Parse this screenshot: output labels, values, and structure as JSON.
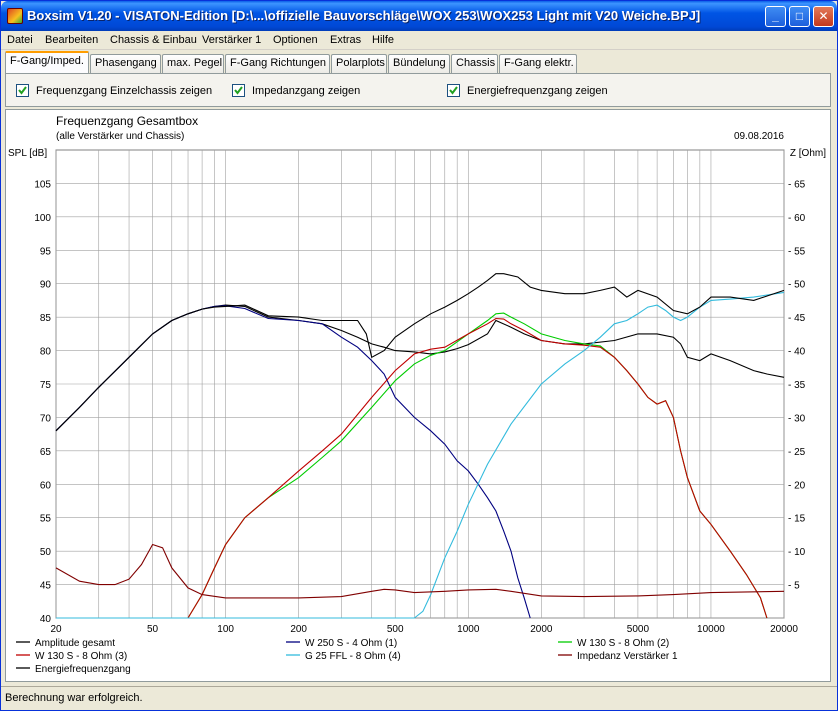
{
  "window": {
    "title": "Boxsim V1.20 - VISATON-Edition [D:\\...\\offizielle Bauvorschläge\\WOX 253\\WOX253 Light mit V20 Weiche.BPJ]",
    "minimize_label": "_",
    "maximize_label": "□",
    "close_label": "✕"
  },
  "menu": [
    "Datei",
    "Bearbeiten",
    "Chassis & Einbau",
    "Verstärker 1",
    "Optionen",
    "Extras",
    "Hilfe"
  ],
  "tabs": [
    "F-Gang/Imped.",
    "Phasengang",
    "max. Pegel",
    "F-Gang Richtungen",
    "Polarplots",
    "Bündelung",
    "Chassis",
    "F-Gang elektr."
  ],
  "active_tab": 0,
  "options": [
    {
      "label": "Frequenzgang Einzelchassis zeigen",
      "checked": true
    },
    {
      "label": "Impedanzgang zeigen",
      "checked": true
    },
    {
      "label": "Energiefrequenzgang zeigen",
      "checked": true
    }
  ],
  "status": "Berechnung war erfolgreich.",
  "colors": {
    "total": "#000000",
    "w250": "#000080",
    "w130_2": "#00cc00",
    "w130_3": "#c00000",
    "g25": "#33bbdd",
    "imp_amp": "#800000",
    "energy": "#000000",
    "grid": "#a0a0a0"
  },
  "chart_data": {
    "type": "line",
    "title": "Frequenzgang Gesamtbox",
    "subtitle": "(alle Verstärker und Chassis)",
    "date": "09.08.2016",
    "ylabel_left": "SPL [dB]",
    "ylabel_right": "Z [Ohm]",
    "x_scale": "log",
    "xlim": [
      20,
      20000
    ],
    "ylim": [
      40,
      110
    ],
    "ylim_right": [
      0,
      70
    ],
    "x_ticks": [
      20,
      50,
      100,
      200,
      500,
      1000,
      2000,
      5000,
      10000,
      20000
    ],
    "x_tick_labels": [
      "20",
      "50",
      "100",
      "200",
      "500",
      "1000",
      "2000",
      "5000",
      "10000",
      "20000"
    ],
    "y_ticks": [
      40,
      45,
      50,
      55,
      60,
      65,
      70,
      75,
      80,
      85,
      90,
      95,
      100,
      105
    ],
    "y_tick_labels": [
      "40",
      "45",
      "50",
      "55",
      "60",
      "65",
      "70",
      "75",
      "80",
      "85",
      "90",
      "95",
      "100",
      "105"
    ],
    "y_right_ticks": [
      5,
      10,
      15,
      20,
      25,
      30,
      35,
      40,
      45,
      50,
      55,
      60,
      65
    ],
    "y_right_tick_labels": [
      "5",
      "10",
      "15",
      "20",
      "25",
      "30",
      "35",
      "40",
      "45",
      "50",
      "55",
      "60",
      "65"
    ],
    "grid": true,
    "legend_position": "bottom",
    "series": [
      {
        "name": "Amplitude gesamt",
        "color_key": "total",
        "axis": "left",
        "x": [
          20,
          25,
          30,
          40,
          50,
          60,
          70,
          80,
          90,
          100,
          120,
          150,
          200,
          250,
          300,
          350,
          400,
          450,
          500,
          600,
          700,
          800,
          900,
          1000,
          1200,
          1300,
          1500,
          1700,
          2000,
          2500,
          3000,
          4000,
          5000,
          6000,
          7000,
          7500,
          8000,
          9000,
          10000,
          12000,
          15000,
          17000,
          20000
        ],
        "y": [
          68,
          71.5,
          74.5,
          79,
          82.5,
          84.5,
          85.5,
          86.2,
          86.6,
          86.8,
          86.6,
          85,
          84.5,
          84,
          83,
          82,
          81,
          80.5,
          80,
          79.8,
          79.5,
          79.8,
          80.3,
          80.9,
          82.5,
          84.5,
          83.5,
          82.5,
          81.5,
          81,
          81,
          81.5,
          82.5,
          82.5,
          82,
          81,
          79,
          78.5,
          79.5,
          78.5,
          77,
          76.5,
          76
        ]
      },
      {
        "name": "W 250 S - 4 Ohm (1)",
        "color_key": "w250",
        "axis": "left",
        "x": [
          20,
          25,
          30,
          40,
          50,
          60,
          70,
          80,
          90,
          100,
          120,
          150,
          200,
          250,
          300,
          350,
          400,
          450,
          500,
          600,
          700,
          800,
          900,
          1000,
          1100,
          1200,
          1300,
          1400,
          1500,
          1600,
          1700,
          1800
        ],
        "y": [
          68,
          71.5,
          74.5,
          79,
          82.5,
          84.5,
          85.5,
          86.2,
          86.6,
          86.7,
          86.3,
          84.8,
          84.5,
          84,
          82,
          80.5,
          78.5,
          76.5,
          73,
          70,
          68,
          66,
          63.5,
          62,
          60,
          58,
          56,
          53,
          50,
          46,
          43,
          40
        ]
      },
      {
        "name": "W 130 S - 8 Ohm (2)",
        "color_key": "w130_2",
        "axis": "left",
        "x": [
          20,
          50,
          70,
          80,
          90,
          100,
          120,
          150,
          200,
          250,
          300,
          400,
          500,
          600,
          700,
          800,
          1000,
          1200,
          1300,
          1400,
          1500,
          1700,
          2000,
          2500,
          3000,
          3500,
          4000,
          4500,
          5000,
          5500,
          6000,
          6500,
          7000,
          7500,
          8000,
          9000,
          10000,
          12000,
          14000,
          16000,
          17000
        ],
        "y": [
          40,
          40,
          40,
          43.5,
          47.5,
          51,
          55,
          58,
          61,
          64,
          66.5,
          71.5,
          75.5,
          78,
          79.3,
          80,
          82.5,
          84.5,
          85.5,
          85.6,
          85,
          84,
          82.5,
          81.5,
          81,
          80.7,
          79,
          77,
          75,
          73,
          72,
          72.5,
          70,
          65,
          61,
          56,
          54,
          50,
          46.5,
          43,
          40
        ]
      },
      {
        "name": "W 130 S - 8 Ohm (3)",
        "color_key": "w130_3",
        "axis": "left",
        "x": [
          20,
          50,
          70,
          80,
          90,
          100,
          120,
          150,
          200,
          250,
          300,
          400,
          500,
          600,
          700,
          800,
          1000,
          1200,
          1300,
          1400,
          1500,
          1700,
          2000,
          2500,
          3000,
          3500,
          4000,
          4500,
          5000,
          5500,
          6000,
          6500,
          7000,
          7500,
          8000,
          9000,
          10000,
          12000,
          14000,
          16000,
          17000
        ],
        "y": [
          40,
          40,
          40,
          43.5,
          47.5,
          51,
          55,
          58,
          62,
          65,
          67.5,
          73,
          77,
          79.5,
          80.2,
          80.5,
          82.5,
          84,
          84.8,
          84.7,
          84,
          83,
          81.5,
          81,
          80.8,
          80.5,
          79,
          77,
          75,
          73,
          72,
          72.5,
          70,
          65,
          61,
          56,
          54,
          50,
          46.5,
          43,
          40
        ]
      },
      {
        "name": "G 25 FFL - 8 Ohm (4)",
        "color_key": "g25",
        "axis": "left",
        "x": [
          20,
          600,
          650,
          700,
          800,
          900,
          1000,
          1200,
          1500,
          2000,
          2500,
          3000,
          3500,
          4000,
          4500,
          5000,
          5500,
          6000,
          6500,
          7000,
          7500,
          8000,
          9000,
          10000,
          12000,
          15000,
          20000
        ],
        "y": [
          40,
          40,
          41,
          43.5,
          49,
          53,
          57,
          63,
          69,
          75,
          78,
          80,
          82,
          84,
          84.5,
          85.5,
          86.5,
          86.8,
          86,
          85,
          84.5,
          85,
          86.5,
          87.5,
          87.7,
          88,
          88.7
        ]
      },
      {
        "name": "Impedanz Verstärker 1",
        "color_key": "imp_amp",
        "axis": "right",
        "x": [
          20,
          25,
          30,
          35,
          40,
          45,
          50,
          55,
          60,
          70,
          80,
          100,
          150,
          200,
          300,
          400,
          450,
          500,
          600,
          800,
          1000,
          1300,
          1500,
          2000,
          3000,
          5000,
          7000,
          10000,
          20000
        ],
        "y": [
          7.5,
          5.5,
          5,
          5,
          5.8,
          8,
          11,
          10.5,
          7.5,
          4.5,
          3.5,
          3,
          3,
          3,
          3.2,
          4,
          4.3,
          4.2,
          3.8,
          4,
          4.2,
          4.3,
          4,
          3.3,
          3.2,
          3.3,
          3.5,
          3.8,
          4
        ]
      },
      {
        "name": "Energiefrequenzgang",
        "color_key": "energy",
        "axis": "left",
        "x": [
          20,
          25,
          30,
          40,
          50,
          60,
          70,
          80,
          90,
          100,
          120,
          150,
          200,
          250,
          300,
          350,
          380,
          400,
          450,
          500,
          600,
          700,
          800,
          900,
          1000,
          1100,
          1200,
          1300,
          1400,
          1600,
          1800,
          2000,
          2500,
          3000,
          3500,
          4000,
          4500,
          5000,
          6000,
          7000,
          8000,
          9000,
          10000,
          12000,
          15000,
          20000
        ],
        "y": [
          68,
          71.5,
          74.5,
          79,
          82.5,
          84.5,
          85.5,
          86.2,
          86.5,
          86.6,
          86.8,
          85.2,
          85,
          84.5,
          84.5,
          84.5,
          82.5,
          79,
          80,
          82,
          84,
          85.5,
          86.5,
          87.5,
          88.5,
          89.5,
          90.5,
          91.5,
          91.5,
          91,
          89.5,
          89,
          88.5,
          88.5,
          89,
          89.5,
          88,
          89,
          88,
          86,
          85.5,
          86.5,
          88,
          88,
          87.5,
          89
        ]
      }
    ]
  }
}
